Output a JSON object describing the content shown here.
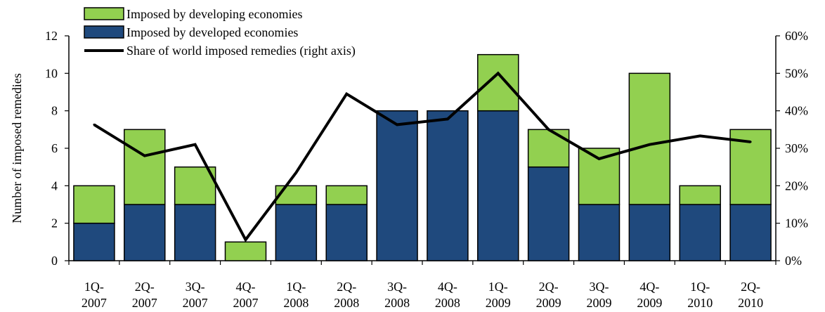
{
  "chart_data": {
    "type": "bar",
    "stacked": true,
    "categories": [
      [
        "1Q-",
        "2007"
      ],
      [
        "2Q-",
        "2007"
      ],
      [
        "3Q-",
        "2007"
      ],
      [
        "4Q-",
        "2007"
      ],
      [
        "1Q-",
        "2008"
      ],
      [
        "2Q-",
        "2008"
      ],
      [
        "3Q-",
        "2008"
      ],
      [
        "4Q-",
        "2008"
      ],
      [
        "1Q-",
        "2009"
      ],
      [
        "2Q-",
        "2009"
      ],
      [
        "3Q-",
        "2009"
      ],
      [
        "4Q-",
        "2009"
      ],
      [
        "1Q-",
        "2010"
      ],
      [
        "2Q-",
        "2010"
      ]
    ],
    "series": [
      {
        "name": "Imposed by developed economies",
        "type": "bar",
        "axis": "left",
        "color": "#1F497D",
        "values": [
          2,
          3,
          3,
          0,
          3,
          3,
          8,
          8,
          8,
          5,
          3,
          3,
          3,
          3
        ]
      },
      {
        "name": "Imposed by developing economies",
        "type": "bar",
        "axis": "left",
        "color": "#92D050",
        "values": [
          2,
          4,
          2,
          1,
          1,
          1,
          0,
          0,
          3,
          2,
          3,
          7,
          1,
          4
        ]
      },
      {
        "name": "Share of world imposed remedies (right axis)",
        "type": "line",
        "axis": "right",
        "color": "#000000",
        "values": [
          36.3,
          28.0,
          31.0,
          5.6,
          23.5,
          44.5,
          36.3,
          37.8,
          50.0,
          35.0,
          27.2,
          31.0,
          33.3,
          31.7
        ]
      }
    ],
    "ylabel": "Number of imposed remedies",
    "ylim": [
      0,
      12
    ],
    "yticks": [
      "0",
      "2",
      "4",
      "6",
      "8",
      "10",
      "12"
    ],
    "y2lim": [
      0,
      60
    ],
    "y2ticks": [
      "0%",
      "10%",
      "20%",
      "30%",
      "40%",
      "50%",
      "60%"
    ],
    "legend_order": [
      "Imposed by developing economies",
      "Imposed by developed economies",
      "Share of world imposed remedies (right axis)"
    ],
    "legend_position": "top-left",
    "grid": false
  }
}
